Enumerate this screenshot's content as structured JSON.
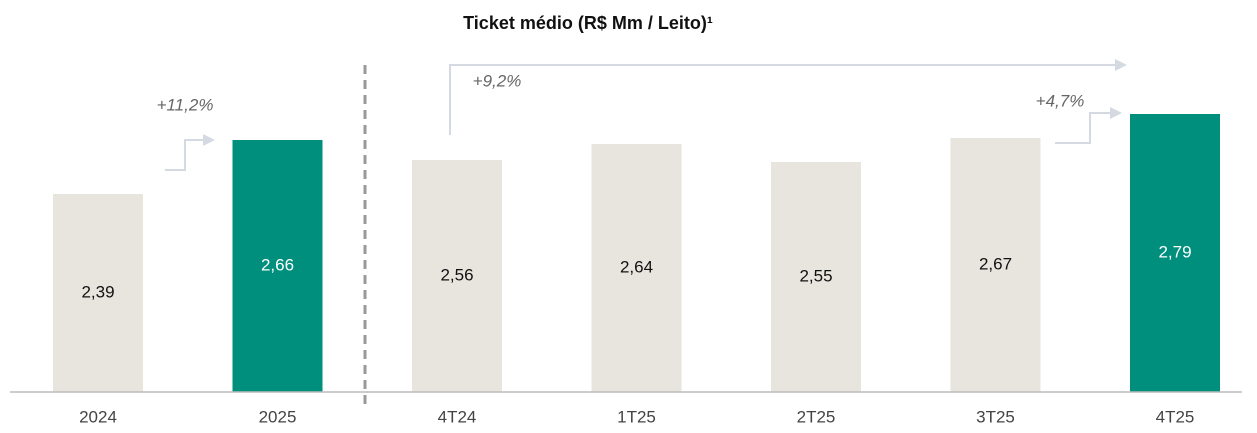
{
  "chart_data": {
    "type": "bar",
    "title": "Ticket médio (R$ Mm / Leito)¹",
    "categories": [
      "2024",
      "2025",
      "4T24",
      "1T25",
      "2T25",
      "3T25",
      "4T25"
    ],
    "values": [
      2.39,
      2.66,
      2.56,
      2.64,
      2.55,
      2.67,
      2.79
    ],
    "value_labels": [
      "2,39",
      "2,66",
      "2,56",
      "2,64",
      "2,55",
      "2,67",
      "2,79"
    ],
    "colors": [
      "#e8e5df",
      "#008f7d",
      "#e8e5df",
      "#e8e5df",
      "#e8e5df",
      "#e8e5df",
      "#008f7d"
    ],
    "ylim": [
      1.4,
      2.8
    ],
    "annotations": [
      "+11,2%",
      "+9,2%",
      "+4,7%"
    ]
  }
}
